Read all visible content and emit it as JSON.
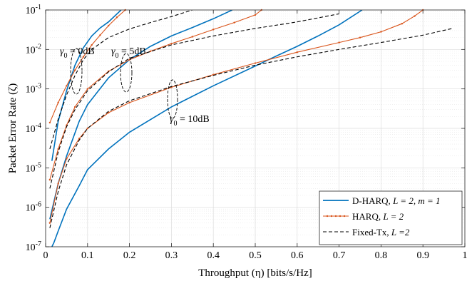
{
  "chart_data": {
    "type": "line",
    "xlabel": "Throughput (η) [bits/s/Hz]",
    "ylabel": "Packet Error Rate (ζ)",
    "xlim": [
      0,
      1
    ],
    "ylim": [
      1e-07,
      0.1
    ],
    "yscale": "log",
    "grid": true,
    "legend_position": "bottom-right",
    "x_ticks": [
      "0",
      "0.1",
      "0.2",
      "0.3",
      "0.4",
      "0.5",
      "0.6",
      "0.7",
      "0.8",
      "0.9",
      "1"
    ],
    "y_ticks": [
      {
        "base": "10",
        "exp": "-7"
      },
      {
        "base": "10",
        "exp": "-6"
      },
      {
        "base": "10",
        "exp": "-5"
      },
      {
        "base": "10",
        "exp": "-4"
      },
      {
        "base": "10",
        "exp": "-3"
      },
      {
        "base": "10",
        "exp": "-2"
      },
      {
        "base": "10",
        "exp": "-1"
      }
    ],
    "legend": [
      {
        "prefix": "D-HARQ, ",
        "italic": "L = 2, m = 1",
        "color": "#0072BD",
        "style": "solid"
      },
      {
        "prefix": "HARQ, ",
        "italic": "L = 2",
        "color": "#D95319",
        "style": "marker"
      },
      {
        "prefix": "Fixed-Tx, ",
        "italic": "L =2",
        "color": "#000000",
        "style": "dashed"
      }
    ],
    "annotations": [
      {
        "sym": "γ",
        "sub": "0",
        "text": " = 0dB"
      },
      {
        "sym": "γ",
        "sub": "0",
        "text": " = 5dB"
      },
      {
        "sym": "γ",
        "sub": "0",
        "text": " = 10dB"
      }
    ],
    "series": [
      {
        "group": "D-HARQ",
        "color": "#0072BD",
        "style": "solid",
        "x": [
          0.015,
          0.03,
          0.05,
          0.07,
          0.09,
          0.11,
          0.13,
          0.15,
          0.18
        ],
        "y": [
          1.5e-05,
          0.00015,
          0.0009,
          0.004,
          0.011,
          0.022,
          0.035,
          0.05,
          0.1
        ]
      },
      {
        "group": "HARQ",
        "color": "#D95319",
        "style": "marker",
        "x": [
          0.01,
          0.03,
          0.05,
          0.07,
          0.09,
          0.11,
          0.13,
          0.15,
          0.17,
          0.19
        ],
        "y": [
          0.00014,
          0.00045,
          0.0012,
          0.003,
          0.0065,
          0.013,
          0.023,
          0.04,
          0.065,
          0.1
        ]
      },
      {
        "group": "Fixed-Tx",
        "color": "#000000",
        "style": "dashed",
        "x": [
          0.01,
          0.03,
          0.05,
          0.07,
          0.09,
          0.11,
          0.15,
          0.2,
          0.25,
          0.3,
          0.35
        ],
        "y": [
          3e-05,
          0.00017,
          0.0007,
          0.0022,
          0.0055,
          0.01,
          0.02,
          0.033,
          0.048,
          0.068,
          0.1
        ]
      },
      {
        "group": "D-HARQ",
        "color": "#0072BD",
        "style": "solid",
        "x": [
          0.01,
          0.03,
          0.05,
          0.08,
          0.1,
          0.15,
          0.2,
          0.25,
          0.3,
          0.35,
          0.4,
          0.445
        ],
        "y": [
          5e-07,
          4e-06,
          2e-05,
          0.00015,
          0.0004,
          0.0019,
          0.0055,
          0.012,
          0.022,
          0.036,
          0.06,
          0.1
        ]
      },
      {
        "group": "HARQ",
        "color": "#D95319",
        "style": "marker",
        "x": [
          0.01,
          0.03,
          0.05,
          0.07,
          0.1,
          0.15,
          0.2,
          0.25,
          0.3,
          0.35,
          0.4,
          0.45,
          0.5,
          0.515
        ],
        "y": [
          5e-06,
          3e-05,
          0.00012,
          0.00035,
          0.001,
          0.0028,
          0.0055,
          0.009,
          0.014,
          0.021,
          0.032,
          0.048,
          0.075,
          0.1
        ]
      },
      {
        "group": "Fixed-Tx",
        "color": "#000000",
        "style": "dashed",
        "x": [
          0.01,
          0.03,
          0.05,
          0.07,
          0.1,
          0.15,
          0.2,
          0.3,
          0.4,
          0.5,
          0.6,
          0.7
        ],
        "y": [
          3e-06,
          2.5e-05,
          0.00011,
          0.0003,
          0.0009,
          0.0027,
          0.006,
          0.013,
          0.022,
          0.034,
          0.05,
          0.08
        ]
      },
      {
        "group": "D-HARQ",
        "color": "#0072BD",
        "style": "solid",
        "x": [
          0.015,
          0.02,
          0.03,
          0.05,
          0.08,
          0.1,
          0.15,
          0.2,
          0.3,
          0.4,
          0.5,
          0.55,
          0.6,
          0.65,
          0.7,
          0.755
        ],
        "y": [
          1e-07,
          1.3e-07,
          2.5e-07,
          9e-07,
          3.5e-06,
          9e-06,
          3e-05,
          8e-05,
          0.00035,
          0.0012,
          0.0038,
          0.0068,
          0.012,
          0.022,
          0.042,
          0.1
        ]
      },
      {
        "group": "HARQ",
        "color": "#D95319",
        "style": "marker",
        "x": [
          0.01,
          0.03,
          0.05,
          0.08,
          0.1,
          0.15,
          0.2,
          0.3,
          0.4,
          0.5,
          0.6,
          0.7,
          0.75,
          0.8,
          0.85,
          0.88,
          0.9
        ],
        "y": [
          4e-07,
          4e-06,
          1.7e-05,
          5.5e-05,
          0.0001,
          0.00025,
          0.00045,
          0.0011,
          0.0023,
          0.0045,
          0.0085,
          0.015,
          0.02,
          0.028,
          0.045,
          0.07,
          0.1
        ]
      },
      {
        "group": "Fixed-Tx",
        "color": "#000000",
        "style": "dashed",
        "x": [
          0.01,
          0.03,
          0.05,
          0.08,
          0.1,
          0.15,
          0.2,
          0.3,
          0.4,
          0.5,
          0.6,
          0.7,
          0.8,
          0.9,
          0.97
        ],
        "y": [
          3e-07,
          2.5e-06,
          1.2e-05,
          5e-05,
          0.0001,
          0.00027,
          0.0005,
          0.00115,
          0.0022,
          0.004,
          0.0065,
          0.01,
          0.015,
          0.023,
          0.034
        ]
      }
    ]
  }
}
